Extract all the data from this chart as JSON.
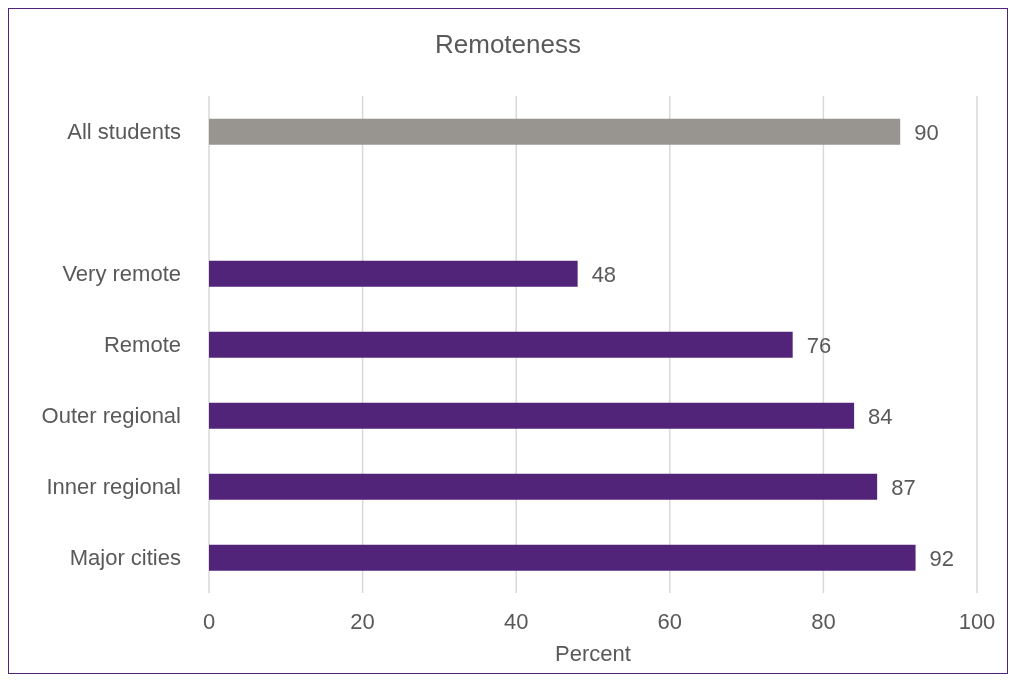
{
  "chart_data": {
    "type": "bar",
    "orientation": "horizontal",
    "title": "Remoteness",
    "xlabel": "Percent",
    "categories": [
      "All students",
      null,
      "Very remote",
      "Remote",
      "Outer regional",
      "Inner regional",
      "Major cities"
    ],
    "values": [
      90,
      null,
      48,
      76,
      84,
      87,
      92
    ],
    "colors": [
      "#989490",
      null,
      "#522479",
      "#522479",
      "#522479",
      "#522479",
      "#522479"
    ],
    "xlim": [
      0,
      100
    ],
    "xticks": [
      0,
      20,
      40,
      60,
      80,
      100
    ],
    "grid": "x",
    "data_labels": true,
    "legend": false
  }
}
